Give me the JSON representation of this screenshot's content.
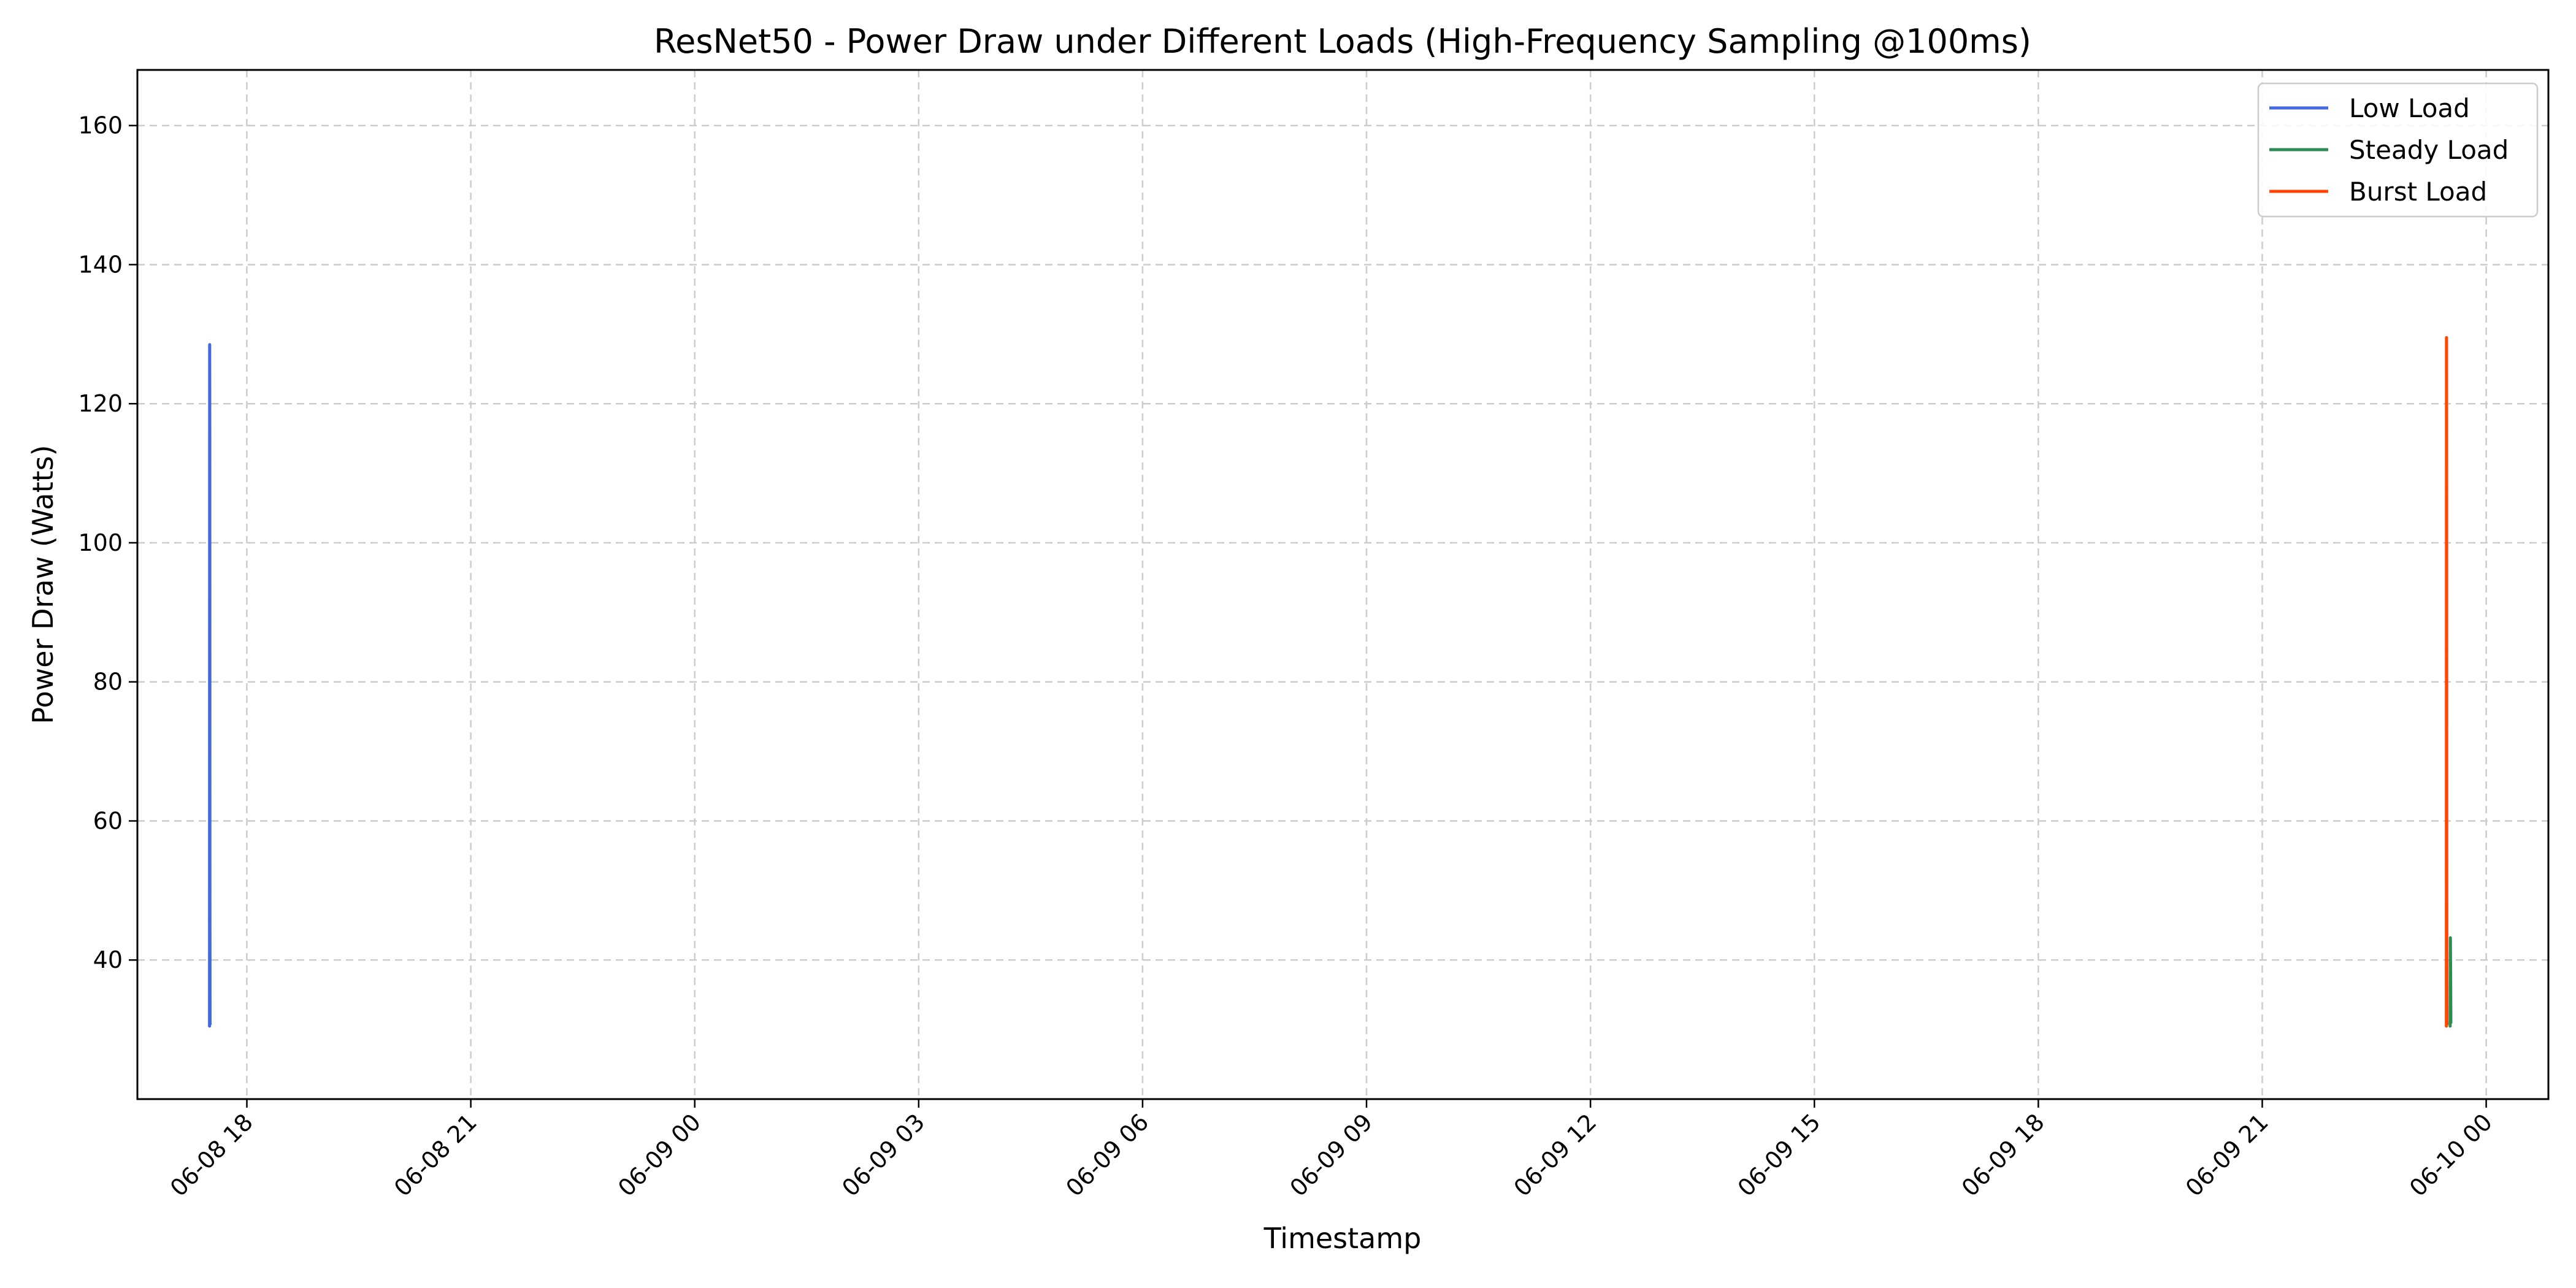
{
  "chart_data": {
    "type": "line",
    "title": "ResNet50 - Power Draw under Different Loads (High-Frequency Sampling @100ms)",
    "xlabel": "Timestamp",
    "ylabel": "Power Draw (Watts)",
    "xlim": [
      "2024-06-08 16:32",
      "2024-06-10 00:50"
    ],
    "ylim": [
      20,
      168
    ],
    "x_ticks": [
      {
        "value": "2024-06-08 18:00",
        "label": "06-08 18"
      },
      {
        "value": "2024-06-08 21:00",
        "label": "06-08 21"
      },
      {
        "value": "2024-06-09 00:00",
        "label": "06-09 00"
      },
      {
        "value": "2024-06-09 03:00",
        "label": "06-09 03"
      },
      {
        "value": "2024-06-09 06:00",
        "label": "06-09 06"
      },
      {
        "value": "2024-06-09 09:00",
        "label": "06-09 09"
      },
      {
        "value": "2024-06-09 12:00",
        "label": "06-09 12"
      },
      {
        "value": "2024-06-09 15:00",
        "label": "06-09 15"
      },
      {
        "value": "2024-06-09 18:00",
        "label": "06-09 18"
      },
      {
        "value": "2024-06-09 21:00",
        "label": "06-09 21"
      },
      {
        "value": "2024-06-10 00:00",
        "label": "06-10 00"
      }
    ],
    "y_ticks": [
      40,
      60,
      80,
      100,
      120,
      140,
      160
    ],
    "grid": true,
    "legend": "top-right",
    "series": [
      {
        "name": "Low Load",
        "color": "#4169e1",
        "points": [
          [
            "2024-06-08 17:30:00",
            30.5
          ],
          [
            "2024-06-08 17:30:06",
            128.5
          ],
          [
            "2024-06-08 17:30:12",
            115.0
          ],
          [
            "2024-06-08 17:30:18",
            48.0
          ],
          [
            "2024-06-08 17:30:24",
            31.0
          ],
          [
            "2024-06-08 17:30:30",
            30.8
          ]
        ]
      },
      {
        "name": "Steady Load",
        "color": "#2e8b57",
        "points": [
          [
            "2024-06-09 23:31:00",
            30.5
          ],
          [
            "2024-06-09 23:31:12",
            43.2
          ],
          [
            "2024-06-09 23:31:24",
            38.0
          ],
          [
            "2024-06-09 23:31:36",
            31.0
          ]
        ]
      },
      {
        "name": "Burst Load",
        "color": "#ff4500",
        "points": [
          [
            "2024-06-09 23:28:00",
            30.5
          ],
          [
            "2024-06-09 23:28:06",
            129.5
          ],
          [
            "2024-06-09 23:28:12",
            112.0
          ],
          [
            "2024-06-09 23:28:18",
            52.0
          ],
          [
            "2024-06-09 23:28:24",
            31.0
          ],
          [
            "2024-06-09 23:28:30",
            30.8
          ]
        ]
      }
    ]
  }
}
